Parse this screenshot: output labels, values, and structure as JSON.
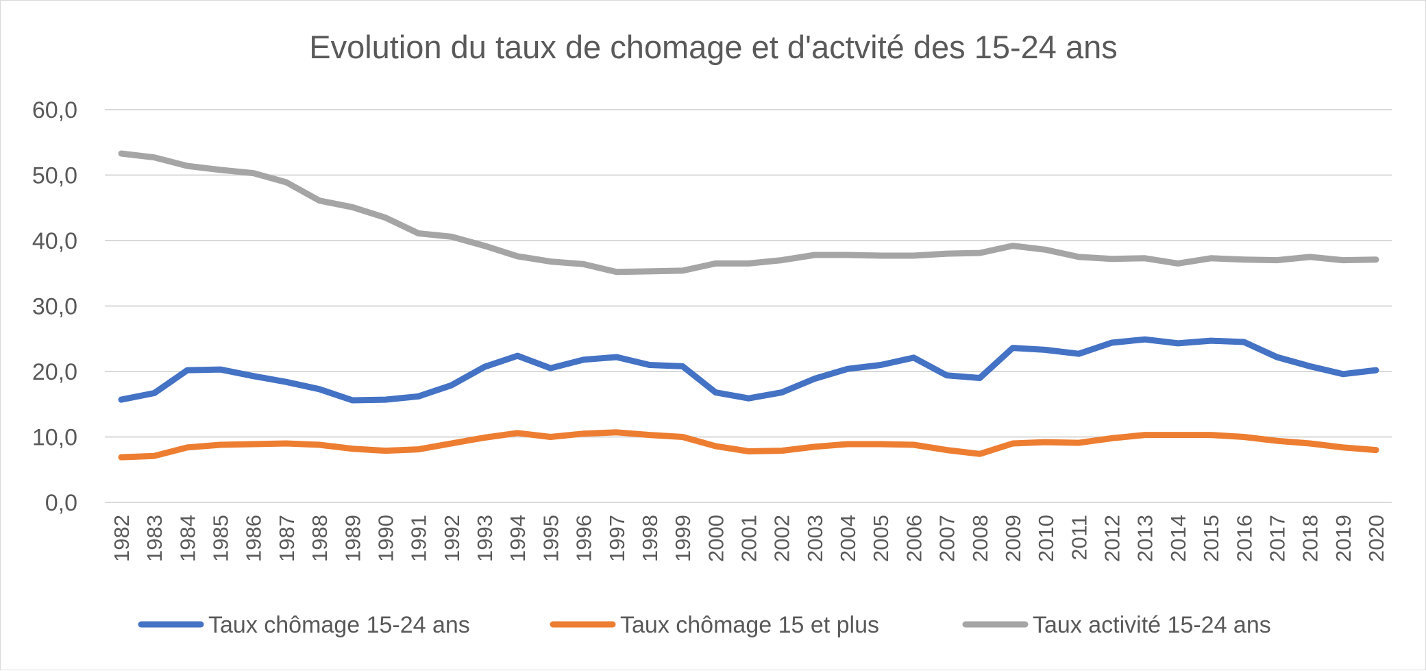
{
  "chart_data": {
    "type": "line",
    "title": "Evolution du taux de chomage et d'actvité des 15-24 ans",
    "xlabel": "",
    "ylabel": "",
    "ylim": [
      0,
      60
    ],
    "yticks": [
      0,
      10,
      20,
      30,
      40,
      50,
      60
    ],
    "ytick_labels": [
      "0,0",
      "10,0",
      "20,0",
      "30,0",
      "40,0",
      "50,0",
      "60,0"
    ],
    "grid": true,
    "legend_position": "bottom",
    "x": [
      "1982",
      "1983",
      "1984",
      "1985",
      "1986",
      "1987",
      "1988",
      "1989",
      "1990",
      "1991",
      "1992",
      "1993",
      "1994",
      "1995",
      "1996",
      "1997",
      "1998",
      "1999",
      "2000",
      "2001",
      "2002",
      "2003",
      "2004",
      "2005",
      "2006",
      "2007",
      "2008",
      "2009",
      "2010",
      "2011",
      "2012",
      "2013",
      "2014",
      "2015",
      "2016",
      "2017",
      "2018",
      "2019",
      "2020"
    ],
    "series": [
      {
        "name": "Taux chômage 15-24 ans",
        "color": "#4472c4",
        "values": [
          15.7,
          16.7,
          20.2,
          20.3,
          19.3,
          18.4,
          17.3,
          15.6,
          15.7,
          16.2,
          17.9,
          20.7,
          22.4,
          20.5,
          21.8,
          22.2,
          21.0,
          20.8,
          16.8,
          15.9,
          16.8,
          18.9,
          20.4,
          21.0,
          22.1,
          19.4,
          19.0,
          23.6,
          23.3,
          22.7,
          24.4,
          24.9,
          24.3,
          24.7,
          24.5,
          22.2,
          20.8,
          19.6,
          20.2
        ]
      },
      {
        "name": "Taux chômage 15 et plus",
        "color": "#ed7d31",
        "values": [
          6.9,
          7.1,
          8.4,
          8.8,
          8.9,
          9.0,
          8.8,
          8.2,
          7.9,
          8.1,
          9.0,
          9.9,
          10.6,
          10.0,
          10.5,
          10.7,
          10.3,
          10.0,
          8.6,
          7.8,
          7.9,
          8.5,
          8.9,
          8.9,
          8.8,
          8.0,
          7.4,
          9.0,
          9.2,
          9.1,
          9.8,
          10.3,
          10.3,
          10.3,
          10.0,
          9.4,
          9.0,
          8.4,
          8.0
        ]
      },
      {
        "name": "Taux activité 15-24 ans",
        "color": "#a5a5a5",
        "values": [
          53.3,
          52.7,
          51.4,
          50.8,
          50.3,
          48.9,
          46.1,
          45.1,
          43.5,
          41.1,
          40.6,
          39.2,
          37.6,
          36.8,
          36.4,
          35.2,
          35.3,
          35.4,
          36.5,
          36.5,
          37.0,
          37.8,
          37.8,
          37.7,
          37.7,
          38.0,
          38.1,
          39.2,
          38.6,
          37.5,
          37.2,
          37.3,
          36.5,
          37.3,
          37.1,
          37.0,
          37.5,
          37.0,
          37.1
        ]
      }
    ]
  }
}
